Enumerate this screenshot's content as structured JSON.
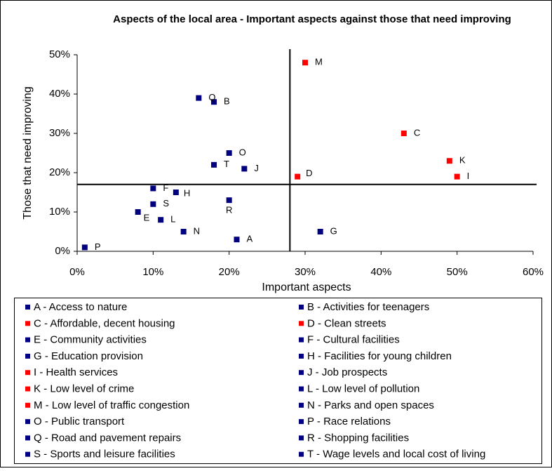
{
  "chart_data": {
    "type": "scatter",
    "title": "Aspects of the local area - Important aspects against those that need improving",
    "x_label": "Important aspects",
    "y_label": "Those that need improving",
    "xlim": [
      0,
      60
    ],
    "ylim": [
      0,
      50
    ],
    "xticks": [
      {
        "value": 0,
        "label": "0%"
      },
      {
        "value": 10,
        "label": "10%"
      },
      {
        "value": 20,
        "label": "20%"
      },
      {
        "value": 30,
        "label": "30%"
      },
      {
        "value": 40,
        "label": "40%"
      },
      {
        "value": 50,
        "label": "50%"
      },
      {
        "value": 60,
        "label": "60%"
      }
    ],
    "yticks": [
      {
        "value": 0,
        "label": "0%"
      },
      {
        "value": 10,
        "label": "10%"
      },
      {
        "value": 20,
        "label": "20%"
      },
      {
        "value": 30,
        "label": "30%"
      },
      {
        "value": 40,
        "label": "40%"
      },
      {
        "value": 50,
        "label": "50%"
      }
    ],
    "reference_lines": {
      "x": 28,
      "y": 17
    },
    "points": [
      {
        "label": "A",
        "name": "A - Access to nature",
        "color": "#000080",
        "x": 21,
        "y": 3
      },
      {
        "label": "B",
        "name": "B - Activities for teenagers",
        "color": "#000080",
        "x": 18,
        "y": 38
      },
      {
        "label": "C",
        "name": "C - Affordable, decent housing",
        "color": "#ff0000",
        "x": 43,
        "y": 30
      },
      {
        "label": "D",
        "name": "D - Clean streets",
        "color": "#ff0000",
        "x": 29,
        "y": 19
      },
      {
        "label": "E",
        "name": "E - Community activities",
        "color": "#000080",
        "x": 8,
        "y": 10
      },
      {
        "label": "F",
        "name": "F - Cultural facilities",
        "color": "#000080",
        "x": 10,
        "y": 16
      },
      {
        "label": "G",
        "name": "G - Education provision",
        "color": "#000080",
        "x": 32,
        "y": 5
      },
      {
        "label": "H",
        "name": "H - Facilities for young children",
        "color": "#000080",
        "x": 13,
        "y": 15
      },
      {
        "label": "I",
        "name": "I - Health services",
        "color": "#ff0000",
        "x": 50,
        "y": 19
      },
      {
        "label": "J",
        "name": "J - Job prospects",
        "color": "#000080",
        "x": 22,
        "y": 21
      },
      {
        "label": "K",
        "name": "K - Low level of crime",
        "color": "#ff0000",
        "x": 49,
        "y": 23
      },
      {
        "label": "L",
        "name": "L - Low level of pollution",
        "color": "#000080",
        "x": 11,
        "y": 8
      },
      {
        "label": "M",
        "name": "M - Low level of traffic congestion",
        "color": "#ff0000",
        "x": 30,
        "y": 48
      },
      {
        "label": "N",
        "name": "N - Parks and open spaces",
        "color": "#000080",
        "x": 14,
        "y": 5
      },
      {
        "label": "O",
        "name": "O - Public transport",
        "color": "#000080",
        "x": 20,
        "y": 25
      },
      {
        "label": "P",
        "name": "P - Race relations",
        "color": "#000080",
        "x": 1,
        "y": 1
      },
      {
        "label": "Q",
        "name": "Q - Road and pavement repairs",
        "color": "#000080",
        "x": 16,
        "y": 39
      },
      {
        "label": "R",
        "name": "R - Shopping facilities",
        "color": "#000080",
        "x": 20,
        "y": 13
      },
      {
        "label": "S",
        "name": "S - Sports and leisure facilities",
        "color": "#000080",
        "x": 10,
        "y": 12
      },
      {
        "label": "T",
        "name": "T - Wage levels and local cost of living",
        "color": "#000080",
        "x": 18,
        "y": 22
      }
    ]
  }
}
